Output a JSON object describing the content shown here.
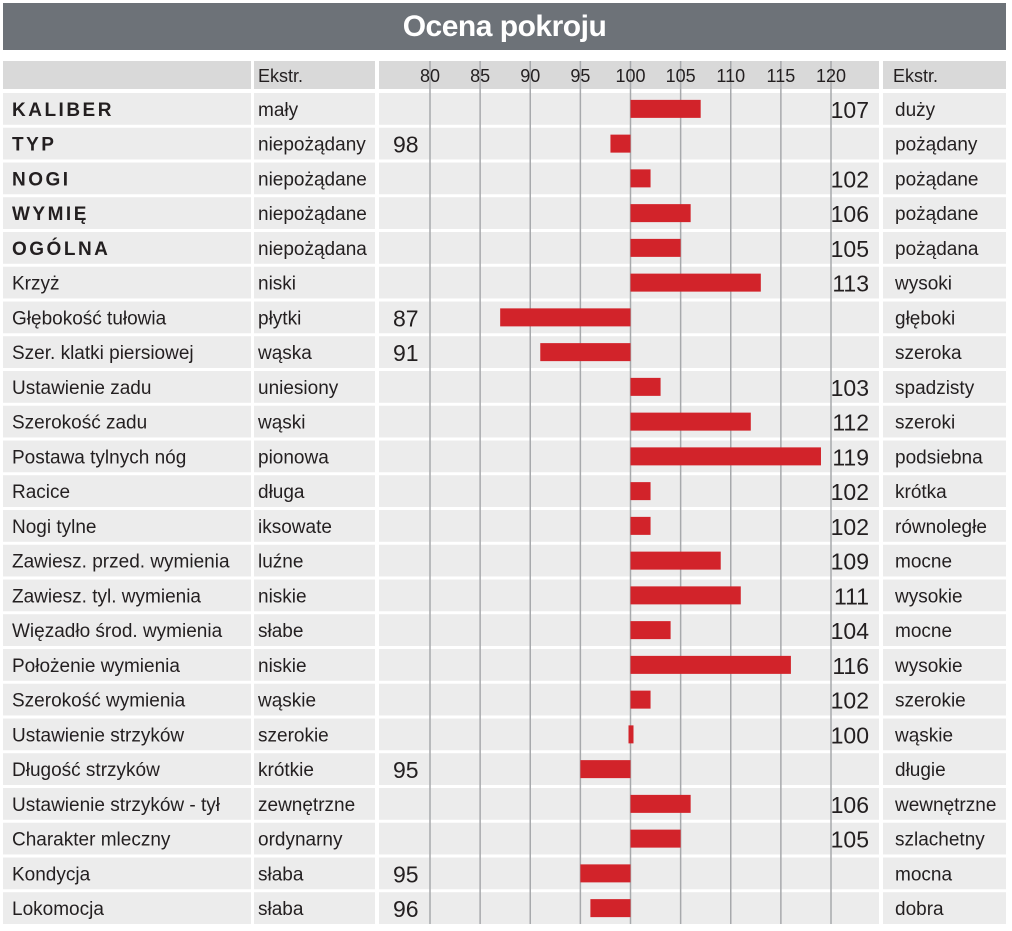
{
  "chart_data": {
    "type": "bar",
    "title": "Ocena pokroju",
    "header_low": "Ekstr.",
    "header_high": "Ekstr.",
    "baseline": 100,
    "xlim": [
      80,
      120
    ],
    "xticks": [
      80,
      85,
      90,
      95,
      100,
      105,
      110,
      115,
      120
    ],
    "grid": true,
    "bar_color": "#d2232a",
    "rows": [
      {
        "label": "KALIBER",
        "bold": true,
        "low": "mały",
        "value": 107,
        "high": "duży"
      },
      {
        "label": "TYP",
        "bold": true,
        "low": "niepożądany",
        "value": 98,
        "high": "pożądany"
      },
      {
        "label": "NOGI",
        "bold": true,
        "low": "niepożądane",
        "value": 102,
        "high": "pożądane"
      },
      {
        "label": "WYMIĘ",
        "bold": true,
        "low": "niepożądane",
        "value": 106,
        "high": "pożądane"
      },
      {
        "label": "OGÓLNA",
        "bold": true,
        "low": "niepożądana",
        "value": 105,
        "high": "pożądana"
      },
      {
        "label": "Krzyż",
        "bold": false,
        "low": "niski",
        "value": 113,
        "high": "wysoki"
      },
      {
        "label": "Głębokość tułowia",
        "bold": false,
        "low": "płytki",
        "value": 87,
        "high": "głęboki"
      },
      {
        "label": "Szer. klatki piersiowej",
        "bold": false,
        "low": "wąska",
        "value": 91,
        "high": "szeroka"
      },
      {
        "label": "Ustawienie zadu",
        "bold": false,
        "low": "uniesiony",
        "value": 103,
        "high": "spadzisty"
      },
      {
        "label": "Szerokość zadu",
        "bold": false,
        "low": "wąski",
        "value": 112,
        "high": "szeroki"
      },
      {
        "label": "Postawa tylnych nóg",
        "bold": false,
        "low": "pionowa",
        "value": 119,
        "high": "podsiebna"
      },
      {
        "label": "Racice",
        "bold": false,
        "low": "długa",
        "value": 102,
        "high": "krótka"
      },
      {
        "label": "Nogi tylne",
        "bold": false,
        "low": "iksowate",
        "value": 102,
        "high": "równoległe"
      },
      {
        "label": "Zawiesz. przed. wymienia",
        "bold": false,
        "low": "luźne",
        "value": 109,
        "high": "mocne"
      },
      {
        "label": "Zawiesz. tyl. wymienia",
        "bold": false,
        "low": "niskie",
        "value": 111,
        "high": "wysokie"
      },
      {
        "label": "Więzadło środ. wymienia",
        "bold": false,
        "low": "słabe",
        "value": 104,
        "high": "mocne"
      },
      {
        "label": "Położenie wymienia",
        "bold": false,
        "low": "niskie",
        "value": 116,
        "high": "wysokie"
      },
      {
        "label": "Szerokość wymienia",
        "bold": false,
        "low": "wąskie",
        "value": 102,
        "high": "szerokie"
      },
      {
        "label": "Ustawienie strzyków",
        "bold": false,
        "low": "szerokie",
        "value": 100,
        "high": "wąskie"
      },
      {
        "label": "Długość strzyków",
        "bold": false,
        "low": "krótkie",
        "value": 95,
        "high": "długie"
      },
      {
        "label": "Ustawienie strzyków - tył",
        "bold": false,
        "low": "zewnętrzne",
        "value": 106,
        "high": "wewnętrzne"
      },
      {
        "label": "Charakter mleczny",
        "bold": false,
        "low": "ordynarny",
        "value": 105,
        "high": "szlachetny"
      },
      {
        "label": "Kondycja",
        "bold": false,
        "low": "słaba",
        "value": 95,
        "high": "mocna"
      },
      {
        "label": "Lokomocja",
        "bold": false,
        "low": "słaba",
        "value": 96,
        "high": "dobra"
      }
    ]
  }
}
